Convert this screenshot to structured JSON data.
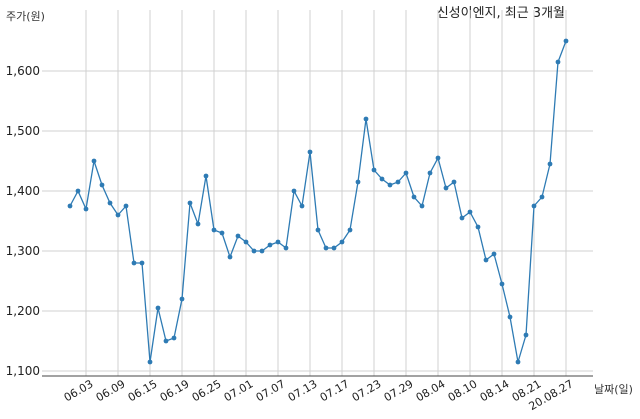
{
  "chart_data": {
    "type": "line",
    "title": "신성이엔지, 최근 3개월",
    "ylabel": "주가(원)",
    "xlabel": "날짜(일)",
    "ylim": [
      1100,
      1660
    ],
    "yticks": [
      1100,
      1200,
      1300,
      1400,
      1500,
      1600
    ],
    "ytick_labels": [
      "1,100",
      "1,200",
      "1,300",
      "1,400",
      "1,500",
      "1,600"
    ],
    "xtick_labels": [
      "06.03",
      "06.09",
      "06.15",
      "06.19",
      "06.25",
      "07.01",
      "07.07",
      "07.13",
      "07.17",
      "07.23",
      "07.29",
      "08.04",
      "08.10",
      "08.14",
      "08.21",
      "20.08.27"
    ],
    "xtick_index": [
      2,
      6,
      10,
      14,
      18,
      22,
      26,
      30,
      34,
      38,
      42,
      46,
      50,
      54,
      58,
      62
    ],
    "grid": true,
    "series": [
      {
        "color": "#2e7bb4",
        "values": [
          1375,
          1400,
          1370,
          1450,
          1410,
          1380,
          1360,
          1375,
          1280,
          1280,
          1115,
          1205,
          1150,
          1155,
          1220,
          1380,
          1345,
          1425,
          1335,
          1330,
          1290,
          1325,
          1315,
          1300,
          1300,
          1310,
          1315,
          1305,
          1400,
          1375,
          1465,
          1335,
          1305,
          1305,
          1315,
          1335,
          1415,
          1520,
          1435,
          1420,
          1410,
          1415,
          1430,
          1390,
          1375,
          1430,
          1455,
          1405,
          1415,
          1355,
          1365,
          1340,
          1285,
          1295,
          1245,
          1190,
          1115,
          1160,
          1375,
          1390,
          1445,
          1615,
          1650
        ]
      }
    ]
  }
}
